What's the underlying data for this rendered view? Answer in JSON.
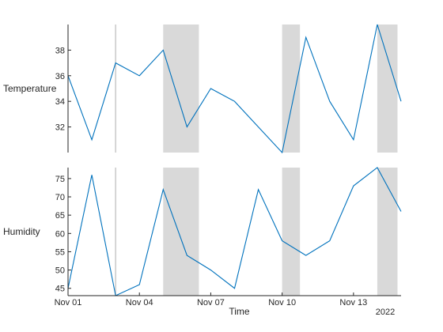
{
  "chart_data": {
    "type": "line",
    "x_dates": [
      "2022-11-01",
      "2022-11-02",
      "2022-11-03",
      "2022-11-04",
      "2022-11-05",
      "2022-11-06",
      "2022-11-07",
      "2022-11-08",
      "2022-11-09",
      "2022-11-10",
      "2022-11-11",
      "2022-11-12",
      "2022-11-13",
      "2022-11-14",
      "2022-11-15"
    ],
    "xlim": [
      "2022-11-01",
      "2022-11-15"
    ],
    "xticks": [
      "Nov 01",
      "Nov 04",
      "Nov 07",
      "Nov 10",
      "Nov 13"
    ],
    "xlabel": "Time",
    "year_label": "2022",
    "vertical_line_date": "2022-11-03",
    "shaded_regions": [
      [
        "2022-11-05",
        "2022-11-06.5"
      ],
      [
        "2022-11-10",
        "2022-11-10.75"
      ],
      [
        "2022-11-14",
        "2022-11-14.85"
      ]
    ],
    "panels": [
      {
        "name": "temperature",
        "ylabel": "Temperature",
        "ylim": [
          30,
          40
        ],
        "yticks": [
          32,
          34,
          36,
          38
        ],
        "values": [
          36,
          31,
          37,
          36,
          38,
          32,
          35,
          34,
          32,
          30,
          39,
          34,
          31,
          40,
          34
        ]
      },
      {
        "name": "humidity",
        "ylabel": "Humidity",
        "ylim": [
          43,
          78
        ],
        "yticks": [
          45,
          50,
          55,
          60,
          65,
          70,
          75
        ],
        "values": [
          45,
          76,
          43,
          46,
          72,
          54,
          50,
          45,
          72,
          58,
          54,
          58,
          73,
          78,
          66
        ]
      }
    ],
    "colors": {
      "line": "#0072bd",
      "shade": "#d9d9d9",
      "vline": "#c8c8c8"
    },
    "grid": false
  }
}
